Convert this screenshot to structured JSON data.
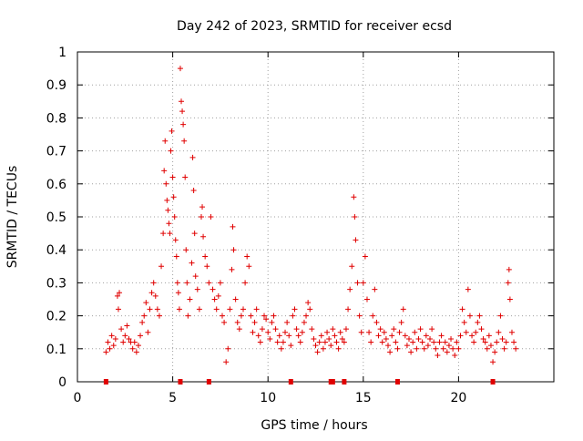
{
  "chart_data": {
    "type": "scatter",
    "title": "Day 242 of 2023, SRMTID for receiver ecsd",
    "xlabel": "GPS time / hours",
    "ylabel": "SRMTID / TECUs",
    "xlim": [
      0,
      25
    ],
    "ylim": [
      0,
      1
    ],
    "xticks": [
      "0",
      "5",
      "10",
      "15",
      "20"
    ],
    "xtick_values": [
      0,
      5,
      10,
      15,
      20
    ],
    "yticks": [
      "0",
      "0.1",
      "0.2",
      "0.3",
      "0.4",
      "0.5",
      "0.6",
      "0.7",
      "0.8",
      "0.9",
      "1"
    ],
    "ytick_values": [
      0,
      0.1,
      0.2,
      0.3,
      0.4,
      0.5,
      0.6,
      0.7,
      0.8,
      0.9,
      1
    ],
    "grid": true,
    "marker": "plus",
    "color": "#e00000",
    "series": [
      {
        "name": "SRMTID",
        "points": [
          [
            1.5,
            0.09
          ],
          [
            1.6,
            0.12
          ],
          [
            1.7,
            0.1
          ],
          [
            1.8,
            0.14
          ],
          [
            1.9,
            0.11
          ],
          [
            2.0,
            0.13
          ],
          [
            2.1,
            0.26
          ],
          [
            2.15,
            0.22
          ],
          [
            2.2,
            0.27
          ],
          [
            2.3,
            0.16
          ],
          [
            2.4,
            0.12
          ],
          [
            2.5,
            0.14
          ],
          [
            2.6,
            0.17
          ],
          [
            2.7,
            0.13
          ],
          [
            2.8,
            0.12
          ],
          [
            2.9,
            0.1
          ],
          [
            3.0,
            0.12
          ],
          [
            3.1,
            0.09
          ],
          [
            3.2,
            0.11
          ],
          [
            3.3,
            0.14
          ],
          [
            3.4,
            0.18
          ],
          [
            3.5,
            0.2
          ],
          [
            3.6,
            0.24
          ],
          [
            3.7,
            0.15
          ],
          [
            3.8,
            0.22
          ],
          [
            3.9,
            0.27
          ],
          [
            4.0,
            0.3
          ],
          [
            4.1,
            0.26
          ],
          [
            4.2,
            0.22
          ],
          [
            4.3,
            0.2
          ],
          [
            4.4,
            0.35
          ],
          [
            4.5,
            0.45
          ],
          [
            4.55,
            0.64
          ],
          [
            4.6,
            0.73
          ],
          [
            4.65,
            0.6
          ],
          [
            4.7,
            0.55
          ],
          [
            4.75,
            0.52
          ],
          [
            4.8,
            0.48
          ],
          [
            4.85,
            0.45
          ],
          [
            4.9,
            0.7
          ],
          [
            4.95,
            0.76
          ],
          [
            5.0,
            0.62
          ],
          [
            5.05,
            0.56
          ],
          [
            5.1,
            0.5
          ],
          [
            5.15,
            0.43
          ],
          [
            5.2,
            0.38
          ],
          [
            5.25,
            0.3
          ],
          [
            5.3,
            0.27
          ],
          [
            5.35,
            0.22
          ],
          [
            5.4,
            0.95
          ],
          [
            5.45,
            0.85
          ],
          [
            5.5,
            0.82
          ],
          [
            5.55,
            0.78
          ],
          [
            5.6,
            0.73
          ],
          [
            5.65,
            0.62
          ],
          [
            5.7,
            0.4
          ],
          [
            5.75,
            0.3
          ],
          [
            5.8,
            0.2
          ],
          [
            5.9,
            0.25
          ],
          [
            6.0,
            0.36
          ],
          [
            6.05,
            0.68
          ],
          [
            6.1,
            0.58
          ],
          [
            6.15,
            0.45
          ],
          [
            6.2,
            0.32
          ],
          [
            6.3,
            0.28
          ],
          [
            6.4,
            0.22
          ],
          [
            6.5,
            0.5
          ],
          [
            6.55,
            0.53
          ],
          [
            6.6,
            0.44
          ],
          [
            6.7,
            0.38
          ],
          [
            6.8,
            0.35
          ],
          [
            6.9,
            0.3
          ],
          [
            7.0,
            0.5
          ],
          [
            7.1,
            0.28
          ],
          [
            7.2,
            0.25
          ],
          [
            7.3,
            0.22
          ],
          [
            7.4,
            0.26
          ],
          [
            7.5,
            0.3
          ],
          [
            7.6,
            0.2
          ],
          [
            7.7,
            0.18
          ],
          [
            7.8,
            0.06
          ],
          [
            7.9,
            0.1
          ],
          [
            8.0,
            0.22
          ],
          [
            8.1,
            0.34
          ],
          [
            8.15,
            0.47
          ],
          [
            8.2,
            0.4
          ],
          [
            8.3,
            0.25
          ],
          [
            8.4,
            0.18
          ],
          [
            8.5,
            0.16
          ],
          [
            8.6,
            0.2
          ],
          [
            8.7,
            0.22
          ],
          [
            8.8,
            0.3
          ],
          [
            8.9,
            0.38
          ],
          [
            9.0,
            0.35
          ],
          [
            9.1,
            0.2
          ],
          [
            9.2,
            0.15
          ],
          [
            9.3,
            0.18
          ],
          [
            9.4,
            0.22
          ],
          [
            9.5,
            0.14
          ],
          [
            9.6,
            0.12
          ],
          [
            9.7,
            0.16
          ],
          [
            9.8,
            0.2
          ],
          [
            9.9,
            0.19
          ],
          [
            10.0,
            0.15
          ],
          [
            10.1,
            0.13
          ],
          [
            10.2,
            0.18
          ],
          [
            10.3,
            0.2
          ],
          [
            10.4,
            0.16
          ],
          [
            10.5,
            0.12
          ],
          [
            10.6,
            0.14
          ],
          [
            10.7,
            0.1
          ],
          [
            10.8,
            0.12
          ],
          [
            10.9,
            0.15
          ],
          [
            11.0,
            0.18
          ],
          [
            11.1,
            0.14
          ],
          [
            11.2,
            0.11
          ],
          [
            11.3,
            0.2
          ],
          [
            11.4,
            0.22
          ],
          [
            11.5,
            0.16
          ],
          [
            11.6,
            0.14
          ],
          [
            11.7,
            0.12
          ],
          [
            11.8,
            0.15
          ],
          [
            11.9,
            0.18
          ],
          [
            12.0,
            0.2
          ],
          [
            12.1,
            0.24
          ],
          [
            12.2,
            0.22
          ],
          [
            12.3,
            0.16
          ],
          [
            12.4,
            0.13
          ],
          [
            12.5,
            0.11
          ],
          [
            12.6,
            0.09
          ],
          [
            12.7,
            0.12
          ],
          [
            12.8,
            0.14
          ],
          [
            12.9,
            0.1
          ],
          [
            13.0,
            0.12
          ],
          [
            13.1,
            0.15
          ],
          [
            13.2,
            0.13
          ],
          [
            13.3,
            0.11
          ],
          [
            13.4,
            0.16
          ],
          [
            13.5,
            0.14
          ],
          [
            13.6,
            0.12
          ],
          [
            13.7,
            0.1
          ],
          [
            13.8,
            0.15
          ],
          [
            13.9,
            0.13
          ],
          [
            14.0,
            0.12
          ],
          [
            14.1,
            0.16
          ],
          [
            14.2,
            0.22
          ],
          [
            14.3,
            0.28
          ],
          [
            14.4,
            0.35
          ],
          [
            14.5,
            0.56
          ],
          [
            14.55,
            0.5
          ],
          [
            14.6,
            0.43
          ],
          [
            14.7,
            0.3
          ],
          [
            14.8,
            0.2
          ],
          [
            14.9,
            0.15
          ],
          [
            15.0,
            0.3
          ],
          [
            15.1,
            0.38
          ],
          [
            15.2,
            0.25
          ],
          [
            15.3,
            0.15
          ],
          [
            15.4,
            0.12
          ],
          [
            15.5,
            0.2
          ],
          [
            15.6,
            0.28
          ],
          [
            15.7,
            0.18
          ],
          [
            15.8,
            0.14
          ],
          [
            15.9,
            0.16
          ],
          [
            16.0,
            0.12
          ],
          [
            16.1,
            0.15
          ],
          [
            16.2,
            0.13
          ],
          [
            16.3,
            0.11
          ],
          [
            16.4,
            0.09
          ],
          [
            16.5,
            0.14
          ],
          [
            16.6,
            0.16
          ],
          [
            16.7,
            0.12
          ],
          [
            16.8,
            0.1
          ],
          [
            16.9,
            0.15
          ],
          [
            17.0,
            0.18
          ],
          [
            17.1,
            0.22
          ],
          [
            17.2,
            0.14
          ],
          [
            17.3,
            0.11
          ],
          [
            17.4,
            0.13
          ],
          [
            17.5,
            0.09
          ],
          [
            17.6,
            0.12
          ],
          [
            17.7,
            0.15
          ],
          [
            17.8,
            0.1
          ],
          [
            17.9,
            0.13
          ],
          [
            18.0,
            0.16
          ],
          [
            18.1,
            0.12
          ],
          [
            18.2,
            0.1
          ],
          [
            18.3,
            0.14
          ],
          [
            18.4,
            0.11
          ],
          [
            18.5,
            0.13
          ],
          [
            18.6,
            0.16
          ],
          [
            18.7,
            0.12
          ],
          [
            18.8,
            0.1
          ],
          [
            18.9,
            0.08
          ],
          [
            19.0,
            0.12
          ],
          [
            19.1,
            0.14
          ],
          [
            19.2,
            0.1
          ],
          [
            19.3,
            0.12
          ],
          [
            19.4,
            0.09
          ],
          [
            19.5,
            0.11
          ],
          [
            19.6,
            0.13
          ],
          [
            19.7,
            0.1
          ],
          [
            19.8,
            0.08
          ],
          [
            19.9,
            0.12
          ],
          [
            20.0,
            0.1
          ],
          [
            20.1,
            0.14
          ],
          [
            20.2,
            0.22
          ],
          [
            20.3,
            0.18
          ],
          [
            20.4,
            0.15
          ],
          [
            20.5,
            0.28
          ],
          [
            20.6,
            0.2
          ],
          [
            20.7,
            0.14
          ],
          [
            20.8,
            0.12
          ],
          [
            20.9,
            0.15
          ],
          [
            21.0,
            0.18
          ],
          [
            21.1,
            0.2
          ],
          [
            21.2,
            0.16
          ],
          [
            21.3,
            0.13
          ],
          [
            21.4,
            0.12
          ],
          [
            21.5,
            0.1
          ],
          [
            21.6,
            0.14
          ],
          [
            21.7,
            0.11
          ],
          [
            21.8,
            0.06
          ],
          [
            21.9,
            0.09
          ],
          [
            22.0,
            0.12
          ],
          [
            22.1,
            0.15
          ],
          [
            22.2,
            0.2
          ],
          [
            22.3,
            0.13
          ],
          [
            22.4,
            0.1
          ],
          [
            22.5,
            0.12
          ],
          [
            22.6,
            0.3
          ],
          [
            22.65,
            0.34
          ],
          [
            22.7,
            0.25
          ],
          [
            22.8,
            0.15
          ],
          [
            22.9,
            0.12
          ],
          [
            23.0,
            0.1
          ]
        ]
      }
    ],
    "zero_points_x": [
      1.5,
      5.4,
      6.9,
      11.2,
      13.3,
      13.4,
      14.0,
      16.8,
      21.8
    ]
  }
}
